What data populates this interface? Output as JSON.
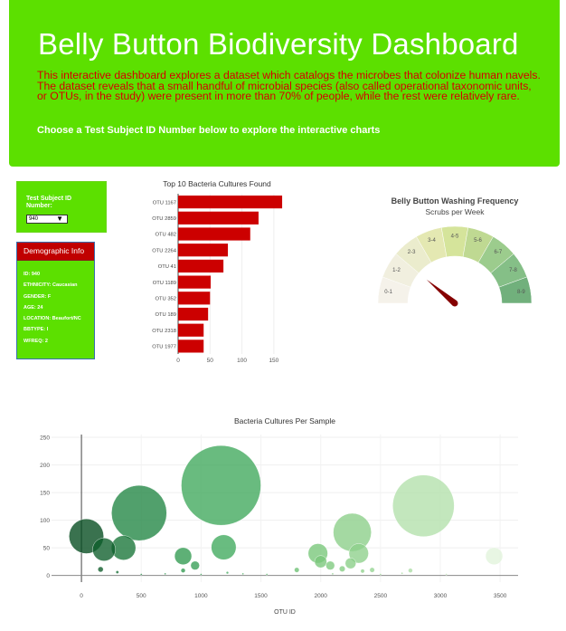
{
  "header": {
    "title": "Belly Button Biodiversity Dashboard",
    "description": "This interactive dashboard explores a dataset which catalogs the microbes that colonize human navels. The dataset reveals that a small handful of microbial species (also called operational taxonomic units, or OTUs, in the study) were present in more than 70% of people, while the rest were relatively rare.",
    "instruction": "Choose a Test Subject ID Number below to explore the interactive charts"
  },
  "selector": {
    "label": "Test Subject ID Number:",
    "value": "940"
  },
  "demographics": {
    "title": "Demographic Info",
    "rows": [
      "ID: 940",
      "ETHNICITY: Caucasian",
      "GENDER: F",
      "AGE: 24",
      "LOCATION: Beaufort/NC",
      "BBTYPE: I",
      "WFREQ: 2"
    ]
  },
  "colors": {
    "banner": "#5ce000",
    "accent_red": "#cc0000",
    "description_text": "#d40000"
  },
  "chart_data": [
    {
      "type": "bar",
      "orientation": "horizontal",
      "title": "Top 10 Bacteria Cultures Found",
      "categories": [
        "OTU 1167",
        "OTU 2859",
        "OTU 482",
        "OTU 2264",
        "OTU 41",
        "OTU 1189",
        "OTU 352",
        "OTU 189",
        "OTU 2318",
        "OTU 1977"
      ],
      "values": [
        163,
        126,
        113,
        78,
        71,
        51,
        50,
        47,
        40,
        40
      ],
      "xticks": [
        0,
        50,
        100,
        150
      ],
      "xlim": [
        0,
        170
      ],
      "color": "#cc0000"
    },
    {
      "type": "gauge",
      "title": "Belly Button Washing Frequency",
      "subtitle": "Scrubs per Week",
      "segments": [
        "0-1",
        "1-2",
        "2-3",
        "3-4",
        "4-5",
        "5-6",
        "6-7",
        "7-8",
        "8-9"
      ],
      "segment_colors": [
        "#f5f2ea",
        "#f1efdf",
        "#ebeccd",
        "#e4e8b2",
        "#d5e49b",
        "#bfd992",
        "#9ccc8d",
        "#85bf87",
        "#71b07c"
      ],
      "range": [
        0,
        9
      ],
      "value": 2
    },
    {
      "type": "bubble",
      "title": "Bacteria Cultures Per Sample",
      "xlabel": "OTU ID",
      "xlim": [
        -250,
        3650
      ],
      "ylim": [
        -12,
        255
      ],
      "xticks": [
        0,
        500,
        1000,
        1500,
        2000,
        2500,
        3000,
        3500
      ],
      "yticks": [
        0,
        50,
        100,
        150,
        200,
        250
      ],
      "points": [
        {
          "x": 41,
          "y": 71
        },
        {
          "x": 189,
          "y": 47
        },
        {
          "x": 352,
          "y": 50
        },
        {
          "x": 482,
          "y": 113
        },
        {
          "x": 1167,
          "y": 163
        },
        {
          "x": 1189,
          "y": 51
        },
        {
          "x": 2264,
          "y": 78
        },
        {
          "x": 2859,
          "y": 126
        },
        {
          "x": 2318,
          "y": 40
        },
        {
          "x": 1977,
          "y": 40
        },
        {
          "x": 850,
          "y": 35
        },
        {
          "x": 950,
          "y": 18
        },
        {
          "x": 2000,
          "y": 25
        },
        {
          "x": 2080,
          "y": 18
        },
        {
          "x": 2180,
          "y": 12
        },
        {
          "x": 2250,
          "y": 22
        },
        {
          "x": 2350,
          "y": 8
        },
        {
          "x": 2430,
          "y": 10
        },
        {
          "x": 1800,
          "y": 10
        },
        {
          "x": 2750,
          "y": 9
        },
        {
          "x": 3450,
          "y": 35
        },
        {
          "x": 160,
          "y": 11
        },
        {
          "x": 300,
          "y": 6
        },
        {
          "x": 700,
          "y": 3
        },
        {
          "x": 850,
          "y": 9
        },
        {
          "x": 1220,
          "y": 5
        },
        {
          "x": 1350,
          "y": 3
        },
        {
          "x": 1550,
          "y": 2
        },
        {
          "x": 2100,
          "y": 3
        },
        {
          "x": 2500,
          "y": 2
        },
        {
          "x": 2680,
          "y": 4
        },
        {
          "x": 3050,
          "y": 2
        },
        {
          "x": 500,
          "y": 2
        },
        {
          "x": 1000,
          "y": 2
        }
      ],
      "colorscale": "Greens"
    }
  ]
}
